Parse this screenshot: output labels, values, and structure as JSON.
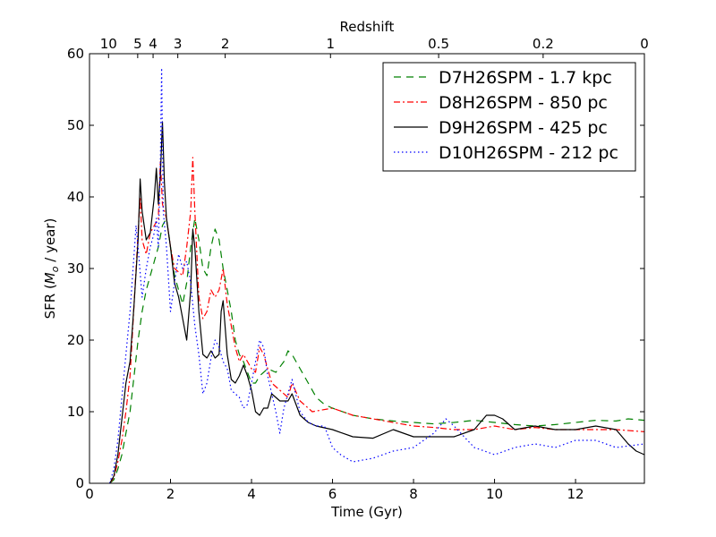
{
  "chart_data": {
    "type": "line",
    "xlabel": "Time (Gyr)",
    "ylabel": "SFR (",
    "ylabel_math": "M",
    "ylabel_sub": "o",
    "ylabel_tail": " / year)",
    "top_axis_label": "Redshift",
    "xlim": [
      0,
      13.7
    ],
    "ylim": [
      0,
      60
    ],
    "xticks": [
      0,
      2,
      4,
      6,
      8,
      10,
      12
    ],
    "yticks": [
      0,
      10,
      20,
      30,
      40,
      50,
      60
    ],
    "redshift_ticks": [
      {
        "label": "10",
        "t": 0.47
      },
      {
        "label": "5",
        "t": 1.19
      },
      {
        "label": "4",
        "t": 1.57
      },
      {
        "label": "3",
        "t": 2.18
      },
      {
        "label": "2",
        "t": 3.35
      },
      {
        "label": "1",
        "t": 5.95
      },
      {
        "label": "0.5",
        "t": 8.62
      },
      {
        "label": "0.2",
        "t": 11.2
      },
      {
        "label": "0",
        "t": 13.7
      }
    ],
    "grid": false,
    "legend_position": "top-right",
    "series": [
      {
        "name": "D7H26SPM - 1.7 kpc",
        "color": "#008000",
        "dash": "dashed",
        "points": [
          [
            0.5,
            0
          ],
          [
            0.6,
            0.5
          ],
          [
            0.7,
            2
          ],
          [
            0.8,
            4
          ],
          [
            0.9,
            7
          ],
          [
            1.0,
            10
          ],
          [
            1.1,
            15
          ],
          [
            1.2,
            20
          ],
          [
            1.3,
            24
          ],
          [
            1.4,
            27
          ],
          [
            1.5,
            29
          ],
          [
            1.6,
            31
          ],
          [
            1.7,
            33
          ],
          [
            1.8,
            36
          ],
          [
            1.9,
            37
          ],
          [
            2.0,
            33
          ],
          [
            2.1,
            29
          ],
          [
            2.2,
            27
          ],
          [
            2.3,
            25
          ],
          [
            2.4,
            28
          ],
          [
            2.5,
            33
          ],
          [
            2.6,
            37
          ],
          [
            2.7,
            34
          ],
          [
            2.8,
            30
          ],
          [
            2.9,
            29
          ],
          [
            3.0,
            33
          ],
          [
            3.1,
            35.5
          ],
          [
            3.2,
            34
          ],
          [
            3.3,
            30
          ],
          [
            3.4,
            27
          ],
          [
            3.5,
            24
          ],
          [
            3.6,
            20
          ],
          [
            3.7,
            18
          ],
          [
            3.8,
            17
          ],
          [
            3.9,
            15.5
          ],
          [
            4.0,
            14
          ],
          [
            4.1,
            14
          ],
          [
            4.2,
            15
          ],
          [
            4.4,
            16
          ],
          [
            4.6,
            15.5
          ],
          [
            4.8,
            17
          ],
          [
            4.9,
            18.5
          ],
          [
            5.0,
            18
          ],
          [
            5.2,
            16
          ],
          [
            5.4,
            14
          ],
          [
            5.6,
            12
          ],
          [
            5.8,
            11
          ],
          [
            6.0,
            10.5
          ],
          [
            6.5,
            9.5
          ],
          [
            7.0,
            9
          ],
          [
            7.5,
            8.7
          ],
          [
            8.0,
            8.5
          ],
          [
            8.5,
            8.3
          ],
          [
            9.0,
            8.5
          ],
          [
            9.5,
            8.8
          ],
          [
            10.0,
            8.5
          ],
          [
            10.5,
            8.2
          ],
          [
            11.0,
            8
          ],
          [
            11.5,
            8.2
          ],
          [
            12.0,
            8.5
          ],
          [
            12.5,
            8.8
          ],
          [
            13.0,
            8.7
          ],
          [
            13.3,
            9
          ],
          [
            13.7,
            8.8
          ]
        ]
      },
      {
        "name": "D8H26SPM - 850 pc",
        "color": "#ff0000",
        "dash": "dashdot",
        "points": [
          [
            0.5,
            0
          ],
          [
            0.6,
            0.8
          ],
          [
            0.7,
            3
          ],
          [
            0.8,
            6
          ],
          [
            0.9,
            10
          ],
          [
            1.0,
            15
          ],
          [
            1.1,
            25
          ],
          [
            1.2,
            35
          ],
          [
            1.25,
            40
          ],
          [
            1.3,
            34
          ],
          [
            1.4,
            32
          ],
          [
            1.5,
            35
          ],
          [
            1.6,
            36
          ],
          [
            1.7,
            37
          ],
          [
            1.75,
            45
          ],
          [
            1.8,
            39
          ],
          [
            1.9,
            37
          ],
          [
            2.0,
            33
          ],
          [
            2.1,
            30
          ],
          [
            2.2,
            29.5
          ],
          [
            2.3,
            29
          ],
          [
            2.4,
            33
          ],
          [
            2.5,
            38
          ],
          [
            2.55,
            45.5
          ],
          [
            2.6,
            38
          ],
          [
            2.7,
            26
          ],
          [
            2.8,
            23
          ],
          [
            2.9,
            24
          ],
          [
            3.0,
            27
          ],
          [
            3.1,
            26
          ],
          [
            3.2,
            27
          ],
          [
            3.3,
            30
          ],
          [
            3.4,
            25
          ],
          [
            3.5,
            22
          ],
          [
            3.6,
            19
          ],
          [
            3.7,
            17
          ],
          [
            3.8,
            18
          ],
          [
            3.9,
            17
          ],
          [
            4.0,
            16
          ],
          [
            4.1,
            15.5
          ],
          [
            4.2,
            19
          ],
          [
            4.3,
            18
          ],
          [
            4.5,
            14
          ],
          [
            4.7,
            13
          ],
          [
            4.9,
            12
          ],
          [
            5.0,
            14
          ],
          [
            5.2,
            11.5
          ],
          [
            5.5,
            10
          ],
          [
            6.0,
            10.5
          ],
          [
            6.5,
            9.5
          ],
          [
            7.0,
            9
          ],
          [
            7.5,
            8.5
          ],
          [
            8.0,
            8
          ],
          [
            8.5,
            7.8
          ],
          [
            9.0,
            7.5
          ],
          [
            9.5,
            7.5
          ],
          [
            10.0,
            8
          ],
          [
            10.5,
            7.5
          ],
          [
            11.0,
            7.8
          ],
          [
            11.5,
            7.5
          ],
          [
            12.0,
            7.5
          ],
          [
            12.5,
            7.5
          ],
          [
            13.0,
            7.5
          ],
          [
            13.7,
            7.2
          ]
        ]
      },
      {
        "name": "D9H26SPM - 425 pc",
        "color": "#000000",
        "dash": "solid",
        "points": [
          [
            0.5,
            0
          ],
          [
            0.6,
            1
          ],
          [
            0.7,
            4
          ],
          [
            0.8,
            9
          ],
          [
            0.9,
            14
          ],
          [
            1.0,
            17
          ],
          [
            1.1,
            25
          ],
          [
            1.2,
            34
          ],
          [
            1.25,
            42.5
          ],
          [
            1.3,
            38
          ],
          [
            1.4,
            34
          ],
          [
            1.5,
            35
          ],
          [
            1.6,
            40
          ],
          [
            1.65,
            44
          ],
          [
            1.7,
            39
          ],
          [
            1.75,
            43
          ],
          [
            1.8,
            50.5
          ],
          [
            1.85,
            42
          ],
          [
            1.9,
            37
          ],
          [
            2.0,
            33
          ],
          [
            2.1,
            28
          ],
          [
            2.2,
            26
          ],
          [
            2.3,
            23
          ],
          [
            2.4,
            20
          ],
          [
            2.5,
            27
          ],
          [
            2.55,
            35.5
          ],
          [
            2.6,
            33
          ],
          [
            2.7,
            24
          ],
          [
            2.8,
            18
          ],
          [
            2.9,
            17.5
          ],
          [
            3.0,
            18.5
          ],
          [
            3.1,
            17.5
          ],
          [
            3.2,
            18
          ],
          [
            3.25,
            24
          ],
          [
            3.3,
            25.5
          ],
          [
            3.4,
            18
          ],
          [
            3.5,
            14.5
          ],
          [
            3.6,
            14
          ],
          [
            3.7,
            15
          ],
          [
            3.8,
            16.5
          ],
          [
            3.9,
            15
          ],
          [
            4.0,
            13
          ],
          [
            4.1,
            10
          ],
          [
            4.2,
            9.5
          ],
          [
            4.3,
            10.5
          ],
          [
            4.4,
            10.5
          ],
          [
            4.5,
            12.5
          ],
          [
            4.7,
            11.5
          ],
          [
            4.9,
            11.5
          ],
          [
            5.0,
            12.5
          ],
          [
            5.2,
            9.5
          ],
          [
            5.4,
            8.5
          ],
          [
            5.6,
            8
          ],
          [
            6.0,
            7.5
          ],
          [
            6.5,
            6.5
          ],
          [
            7.0,
            6.3
          ],
          [
            7.5,
            7.5
          ],
          [
            8.0,
            6.5
          ],
          [
            8.5,
            6.5
          ],
          [
            9.0,
            6.5
          ],
          [
            9.5,
            7.5
          ],
          [
            9.8,
            9.5
          ],
          [
            10.0,
            9.5
          ],
          [
            10.2,
            9
          ],
          [
            10.5,
            7.5
          ],
          [
            11.0,
            8
          ],
          [
            11.5,
            7.5
          ],
          [
            12.0,
            7.5
          ],
          [
            12.5,
            8
          ],
          [
            13.0,
            7.5
          ],
          [
            13.3,
            5.5
          ],
          [
            13.5,
            4.5
          ],
          [
            13.7,
            4
          ]
        ]
      },
      {
        "name": "D10H26SPM - 212 pc",
        "color": "#0000ff",
        "dash": "dotted",
        "points": [
          [
            0.5,
            0
          ],
          [
            0.6,
            2
          ],
          [
            0.7,
            6
          ],
          [
            0.8,
            12
          ],
          [
            0.9,
            18
          ],
          [
            1.0,
            24
          ],
          [
            1.1,
            32
          ],
          [
            1.15,
            36
          ],
          [
            1.2,
            33
          ],
          [
            1.3,
            26
          ],
          [
            1.4,
            30
          ],
          [
            1.5,
            33
          ],
          [
            1.6,
            35
          ],
          [
            1.65,
            37
          ],
          [
            1.7,
            33
          ],
          [
            1.75,
            45
          ],
          [
            1.78,
            58
          ],
          [
            1.82,
            38
          ],
          [
            1.9,
            33
          ],
          [
            2.0,
            24
          ],
          [
            2.1,
            28
          ],
          [
            2.2,
            32
          ],
          [
            2.3,
            30
          ],
          [
            2.4,
            31
          ],
          [
            2.5,
            28
          ],
          [
            2.6,
            22
          ],
          [
            2.7,
            18
          ],
          [
            2.8,
            12.5
          ],
          [
            2.9,
            14
          ],
          [
            3.0,
            17.5
          ],
          [
            3.1,
            20
          ],
          [
            3.2,
            19
          ],
          [
            3.3,
            17
          ],
          [
            3.4,
            16
          ],
          [
            3.5,
            13
          ],
          [
            3.7,
            12
          ],
          [
            3.8,
            10.5
          ],
          [
            3.9,
            11
          ],
          [
            4.0,
            14
          ],
          [
            4.2,
            20
          ],
          [
            4.3,
            19
          ],
          [
            4.4,
            15
          ],
          [
            4.6,
            10
          ],
          [
            4.7,
            7
          ],
          [
            4.8,
            10.5
          ],
          [
            5.0,
            14.5
          ],
          [
            5.2,
            10
          ],
          [
            5.4,
            8.5
          ],
          [
            5.6,
            8
          ],
          [
            5.8,
            8
          ],
          [
            6.0,
            5
          ],
          [
            6.2,
            4
          ],
          [
            6.5,
            3
          ],
          [
            7.0,
            3.5
          ],
          [
            7.5,
            4.5
          ],
          [
            8.0,
            5
          ],
          [
            8.5,
            7
          ],
          [
            8.8,
            9
          ],
          [
            9.0,
            8
          ],
          [
            9.5,
            5
          ],
          [
            10.0,
            4
          ],
          [
            10.5,
            5
          ],
          [
            11.0,
            5.5
          ],
          [
            11.5,
            5
          ],
          [
            12.0,
            6
          ],
          [
            12.5,
            6
          ],
          [
            13.0,
            5
          ],
          [
            13.7,
            5.5
          ]
        ]
      }
    ]
  }
}
